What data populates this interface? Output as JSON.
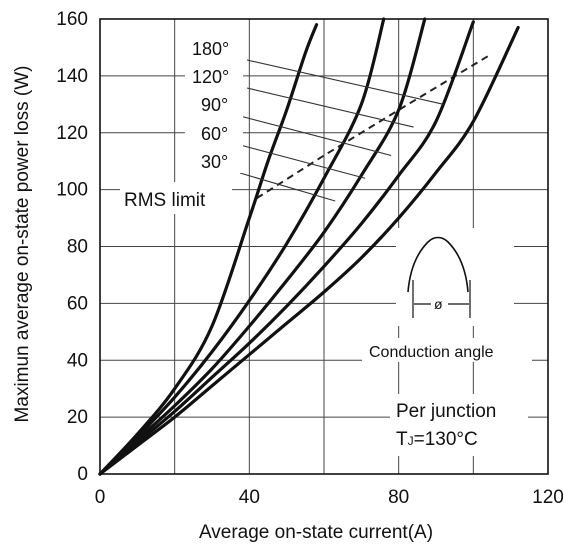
{
  "chart_data": {
    "type": "line",
    "title": "",
    "xlabel": "Average on-state current(A)",
    "ylabel": "Maximun average on-state power loss (W)",
    "xlim": [
      0,
      120
    ],
    "ylim": [
      0,
      160
    ],
    "x_ticks": [
      "0",
      "40",
      "80",
      "120"
    ],
    "y_ticks": [
      "0",
      "20",
      "40",
      "60",
      "80",
      "100",
      "120",
      "140",
      "160"
    ],
    "grid": true,
    "series": [
      {
        "name": "180°",
        "x": [
          0,
          10,
          20,
          30,
          40,
          45,
          50,
          55,
          58
        ],
        "y": [
          0,
          14,
          30,
          52,
          90,
          110,
          128,
          148,
          158
        ]
      },
      {
        "name": "120°",
        "x": [
          0,
          10,
          20,
          30,
          40,
          50,
          60,
          70,
          76
        ],
        "y": [
          0,
          13,
          27,
          43,
          61,
          81,
          104,
          130,
          160
        ]
      },
      {
        "name": "90°",
        "x": [
          0,
          10,
          20,
          30,
          40,
          50,
          60,
          70,
          80,
          87
        ],
        "y": [
          0,
          12,
          24,
          37,
          52,
          68,
          85,
          105,
          128,
          160
        ]
      },
      {
        "name": "60°",
        "x": [
          0,
          10,
          20,
          30,
          40,
          50,
          60,
          70,
          80,
          90,
          100
        ],
        "y": [
          0,
          11,
          22,
          34,
          46,
          59,
          73,
          88,
          105,
          124,
          159
        ]
      },
      {
        "name": "30°",
        "x": [
          0,
          10,
          20,
          30,
          40,
          50,
          60,
          70,
          80,
          90,
          100,
          112
        ],
        "y": [
          0,
          10,
          20,
          31,
          42,
          53,
          64,
          76,
          90,
          106,
          124,
          157
        ]
      }
    ],
    "rms_limit": {
      "label": "RMS limit",
      "x": [
        42,
        60,
        80,
        104
      ],
      "y": [
        97,
        112,
        128,
        147
      ]
    },
    "curve_labels": [
      "180°",
      "120°",
      "90°",
      "60°",
      "30°"
    ],
    "label_leader_targets": [
      {
        "label": "180°",
        "x": 92,
        "y": 130
      },
      {
        "label": "120°",
        "x": 84,
        "y": 122
      },
      {
        "label": "90°",
        "x": 78,
        "y": 112
      },
      {
        "label": "60°",
        "x": 71,
        "y": 104
      },
      {
        "label": "30°",
        "x": 63,
        "y": 96
      }
    ],
    "inset": {
      "caption": "Conduction angle",
      "symbol": "ø"
    },
    "annotation": {
      "line1": "Per junction",
      "line2_prefix": "T",
      "line2_subscript": "J",
      "line2_suffix": "=130°C"
    }
  }
}
